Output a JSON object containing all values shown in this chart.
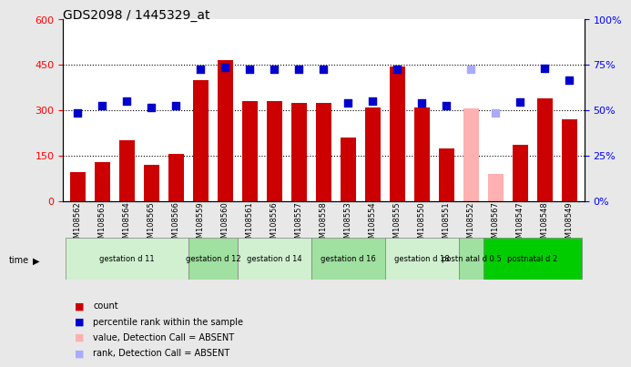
{
  "title": "GDS2098 / 1445329_at",
  "samples": [
    "GSM108562",
    "GSM108563",
    "GSM108564",
    "GSM108565",
    "GSM108566",
    "GSM108559",
    "GSM108560",
    "GSM108561",
    "GSM108556",
    "GSM108557",
    "GSM108558",
    "GSM108553",
    "GSM108554",
    "GSM108555",
    "GSM108550",
    "GSM108551",
    "GSM108552",
    "GSM108567",
    "GSM108547",
    "GSM108548",
    "GSM108549"
  ],
  "counts": [
    95,
    130,
    200,
    120,
    155,
    400,
    465,
    330,
    330,
    325,
    325,
    210,
    310,
    445,
    310,
    175,
    305,
    90,
    185,
    340,
    270
  ],
  "ranks": [
    290,
    315,
    330,
    308,
    315,
    437,
    442,
    437,
    437,
    437,
    437,
    323,
    330,
    437,
    323,
    315,
    437,
    290,
    327,
    440,
    400
  ],
  "absent": [
    false,
    false,
    false,
    false,
    false,
    false,
    false,
    false,
    false,
    false,
    false,
    false,
    false,
    false,
    false,
    false,
    true,
    true,
    false,
    false,
    false
  ],
  "groups": [
    {
      "label": "gestation d 11",
      "start": 0,
      "end": 5,
      "color": "#d0f0d0"
    },
    {
      "label": "gestation d 12",
      "start": 5,
      "end": 7,
      "color": "#a0e0a0"
    },
    {
      "label": "gestation d 14",
      "start": 7,
      "end": 10,
      "color": "#d0f0d0"
    },
    {
      "label": "gestation d 16",
      "start": 10,
      "end": 13,
      "color": "#a0e0a0"
    },
    {
      "label": "gestation d 18",
      "start": 13,
      "end": 16,
      "color": "#d0f0d0"
    },
    {
      "label": "postn atal d 0.5",
      "start": 16,
      "end": 17,
      "color": "#a0e0a0"
    },
    {
      "label": "postnatal d 2",
      "start": 17,
      "end": 21,
      "color": "#00cc00"
    }
  ],
  "bar_color": "#cc0000",
  "bar_absent_color": "#ffb0b0",
  "rank_color": "#0000cc",
  "rank_absent_color": "#aaaaff",
  "ylim_left": [
    0,
    600
  ],
  "ylim_right": [
    0,
    100
  ],
  "yticks_left": [
    0,
    150,
    300,
    450,
    600
  ],
  "yticks_right": [
    0,
    25,
    50,
    75,
    100
  ],
  "background_color": "#f0f0f0",
  "plot_bg": "#ffffff"
}
